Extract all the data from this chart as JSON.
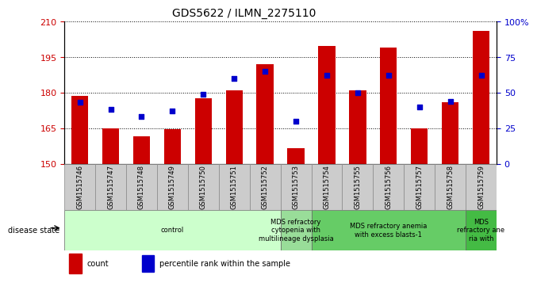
{
  "title": "GDS5622 / ILMN_2275110",
  "samples": [
    "GSM1515746",
    "GSM1515747",
    "GSM1515748",
    "GSM1515749",
    "GSM1515750",
    "GSM1515751",
    "GSM1515752",
    "GSM1515753",
    "GSM1515754",
    "GSM1515755",
    "GSM1515756",
    "GSM1515757",
    "GSM1515758",
    "GSM1515759"
  ],
  "counts": [
    178.5,
    165.0,
    161.5,
    164.5,
    177.5,
    181.0,
    192.0,
    156.5,
    199.5,
    181.0,
    199.0,
    165.0,
    176.0,
    206.0
  ],
  "percentile_ranks": [
    43,
    38,
    33,
    37,
    49,
    60,
    65,
    30,
    62,
    50,
    62,
    40,
    44,
    62
  ],
  "ylim_left": [
    150,
    210
  ],
  "ylim_right": [
    0,
    100
  ],
  "yticks_left": [
    150,
    165,
    180,
    195,
    210
  ],
  "yticks_right": [
    0,
    25,
    50,
    75,
    100
  ],
  "bar_color": "#cc0000",
  "dot_color": "#0000cc",
  "bg_color": "#ffffff",
  "disease_groups": [
    {
      "label": "control",
      "start": 0,
      "end": 6,
      "color": "#ccffcc"
    },
    {
      "label": "MDS refractory\ncytopenia with\nmultilineage dysplasia",
      "start": 7,
      "end": 7,
      "color": "#99dd99"
    },
    {
      "label": "MDS refractory anemia\nwith excess blasts-1",
      "start": 8,
      "end": 12,
      "color": "#66cc66"
    },
    {
      "label": "MDS\nrefractory ane\nria with",
      "start": 13,
      "end": 13,
      "color": "#44bb44"
    }
  ],
  "disease_label": "disease state",
  "legend_count": "count",
  "legend_pct": "percentile rank within the sample",
  "left_label_color": "#cc0000",
  "right_label_color": "#0000cc",
  "ylabel_right": "%",
  "sample_box_color": "#cccccc",
  "title_fontsize": 10,
  "tick_fontsize": 8,
  "sample_fontsize": 6,
  "disease_fontsize": 6,
  "legend_fontsize": 7
}
